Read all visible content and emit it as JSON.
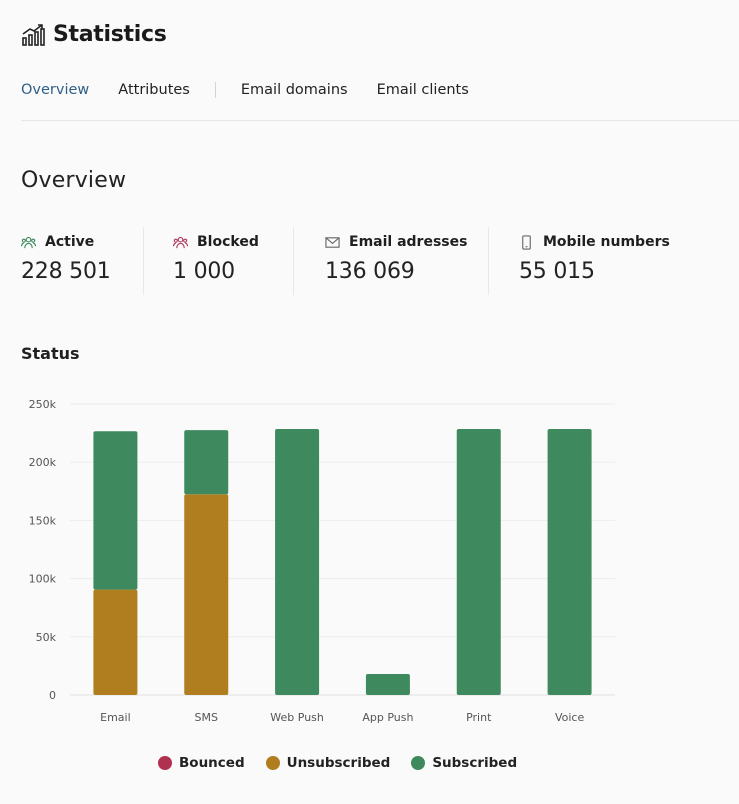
{
  "header": {
    "title": "Statistics"
  },
  "tabs": [
    {
      "label": "Overview",
      "active": true
    },
    {
      "label": "Attributes",
      "active": false
    },
    {
      "label": "Email domains",
      "active": false
    },
    {
      "label": "Email clients",
      "active": false
    }
  ],
  "overview": {
    "title": "Overview"
  },
  "stats": [
    {
      "label": "Active",
      "value": "228 501",
      "icon": "users-icon",
      "color": "#3e8a5e"
    },
    {
      "label": "Blocked",
      "value": "1 000",
      "icon": "users-blocked-icon",
      "color": "#b03a5b"
    },
    {
      "label": "Email adresses",
      "value": "136 069",
      "icon": "envelope-icon",
      "color": "#666666"
    },
    {
      "label": "Mobile numbers",
      "value": "55 015",
      "icon": "mobile-phone-icon",
      "color": "#666666"
    }
  ],
  "status": {
    "title": "Status"
  },
  "colors": {
    "bounced": "#b0304f",
    "unsubscribed": "#b07d1f",
    "subscribed": "#3e8a5e",
    "active_tab": "#2f5f87"
  },
  "chart_data": {
    "type": "bar",
    "stacked": true,
    "categories": [
      "Email",
      "SMS",
      "Web Push",
      "App Push",
      "Print",
      "Voice"
    ],
    "series": [
      {
        "name": "Bounced",
        "color": "#b0304f",
        "values": [
          0,
          0,
          0,
          0,
          0,
          0
        ]
      },
      {
        "name": "Unsubscribed",
        "color": "#b07d1f",
        "values": [
          90500,
          172500,
          0,
          0,
          0,
          0
        ]
      },
      {
        "name": "Subscribed",
        "color": "#3e8a5e",
        "values": [
          136069,
          55015,
          228501,
          18000,
          228501,
          228501
        ]
      }
    ],
    "yticks": [
      0,
      50000,
      100000,
      150000,
      200000,
      250000
    ],
    "yticklabels": [
      "0",
      "50k",
      "100k",
      "150k",
      "200k",
      "250k"
    ],
    "ylim": [
      0,
      250000
    ],
    "grid": true,
    "legend_position": "bottom-center"
  }
}
